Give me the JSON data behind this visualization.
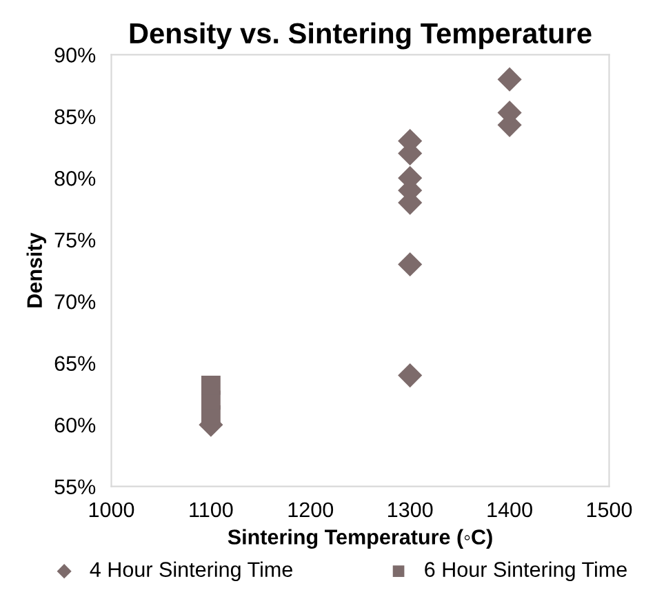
{
  "chart_data": {
    "type": "scatter",
    "title": "Density vs. Sintering Temperature",
    "xlabel": "Sintering Temperature (◦C)",
    "ylabel": "Density",
    "xlim": [
      1000,
      1500
    ],
    "xticks": [
      1000,
      1100,
      1200,
      1300,
      1400,
      1500
    ],
    "ylim": [
      55,
      90
    ],
    "yticks": [
      {
        "value": 55,
        "label": "55%"
      },
      {
        "value": 60,
        "label": "60%"
      },
      {
        "value": 65,
        "label": "65%"
      },
      {
        "value": 70,
        "label": "70%"
      },
      {
        "value": 75,
        "label": "75%"
      },
      {
        "value": 80,
        "label": "80%"
      },
      {
        "value": 85,
        "label": "85%"
      },
      {
        "value": 90,
        "label": "90%"
      }
    ],
    "grid": false,
    "legend": "bottom",
    "series": [
      {
        "name": "4 Hour Sintering Time",
        "color": "#7d6b6b",
        "marker": "diamond",
        "x": [
          1100,
          1300,
          1300,
          1300,
          1300,
          1300,
          1300,
          1300,
          1400,
          1400,
          1400
        ],
        "values": [
          60,
          64,
          73,
          78,
          79,
          80,
          82,
          83,
          84.3,
          85.3,
          88
        ]
      },
      {
        "name": "6 Hour Sintering Time",
        "color": "#7d6b6b",
        "marker": "square",
        "x": [
          1100,
          1100,
          1100
        ],
        "values": [
          60.8,
          62,
          63.2
        ]
      }
    ]
  }
}
